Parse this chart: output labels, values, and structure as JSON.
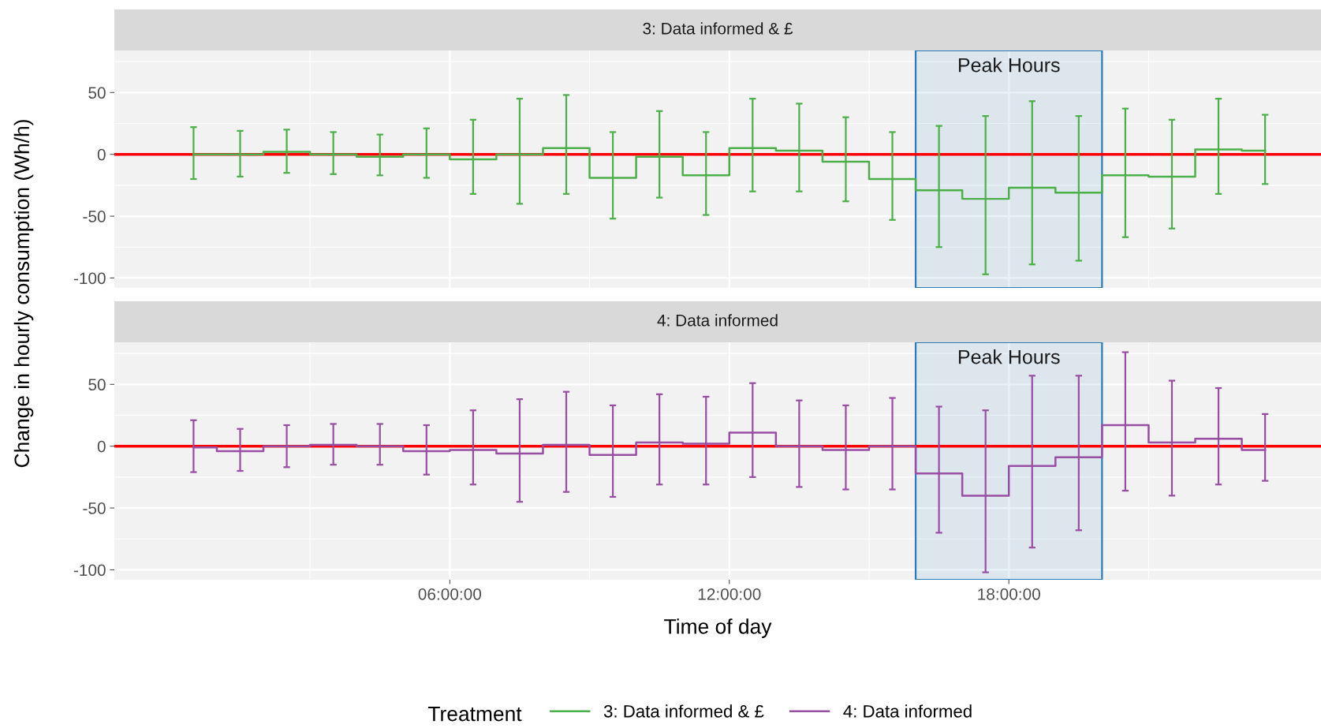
{
  "chart_data": [
    {
      "type": "step",
      "title": "3: Data informed & £",
      "ylabel": "Change in hourly consumption (Wh/h)",
      "legend_title": "Treatment",
      "legend": "bottom",
      "grid": true,
      "x": [
        0.5,
        1.5,
        2.5,
        3.5,
        4.5,
        5.5,
        6.5,
        7.5,
        8.5,
        9.5,
        10.5,
        11.5,
        12.5,
        13.5,
        14.5,
        15.5,
        16.5,
        17.5,
        18.5,
        19.5,
        20.5,
        21.5,
        22.5,
        23.5
      ],
      "series": [
        {
          "name": "3: Data informed & £",
          "color": "#4daf4a",
          "values": [
            0,
            0,
            2,
            0,
            -2,
            0,
            -4,
            0,
            5,
            -19,
            -2,
            -17,
            5,
            3,
            -6,
            -20,
            -29,
            -36,
            -27,
            -31,
            -17,
            -18,
            4,
            3
          ],
          "errors": [
            [
              -20,
              22
            ],
            [
              -18,
              19
            ],
            [
              -15,
              20
            ],
            [
              -16,
              18
            ],
            [
              -17,
              16
            ],
            [
              -19,
              21
            ],
            [
              -32,
              28
            ],
            [
              -40,
              45
            ],
            [
              -32,
              48
            ],
            [
              -52,
              18
            ],
            [
              -35,
              35
            ],
            [
              -49,
              18
            ],
            [
              -30,
              45
            ],
            [
              -30,
              41
            ],
            [
              -38,
              30
            ],
            [
              -53,
              18
            ],
            [
              -75,
              23
            ],
            [
              -97,
              31
            ],
            [
              -89,
              43
            ],
            [
              -86,
              31
            ],
            [
              -67,
              37
            ],
            [
              -60,
              28
            ],
            [
              -32,
              45
            ],
            [
              -24,
              32
            ]
          ]
        }
      ],
      "xlim": [
        -1.2,
        24.7
      ],
      "xticks": [
        6,
        12,
        18
      ],
      "ylim": [
        -108,
        84
      ],
      "yticks": [
        -100,
        -50,
        0,
        50
      ],
      "tick_labels": "y",
      "ref_lines": [
        {
          "axis": "y",
          "value": 0,
          "color": "#ff0000"
        }
      ],
      "bands": [
        {
          "axis": "x",
          "from": 16,
          "to": 20,
          "label": "Peak Hours",
          "color": "#2b7bba"
        }
      ]
    },
    {
      "type": "step",
      "title": "4: Data informed",
      "xlabel": "Time of day",
      "legend": "bottom",
      "grid": true,
      "x": [
        0.5,
        1.5,
        2.5,
        3.5,
        4.5,
        5.5,
        6.5,
        7.5,
        8.5,
        9.5,
        10.5,
        11.5,
        12.5,
        13.5,
        14.5,
        15.5,
        16.5,
        17.5,
        18.5,
        19.5,
        20.5,
        21.5,
        22.5,
        23.5
      ],
      "series": [
        {
          "name": "4: Data informed",
          "color": "#984ea3",
          "values": [
            -1,
            -4,
            0,
            1,
            0,
            -4,
            -3,
            -6,
            1,
            -7,
            3,
            2,
            11,
            0,
            -3,
            0,
            -22,
            -40,
            -16,
            -9,
            17,
            3,
            6,
            -3
          ],
          "errors": [
            [
              -21,
              21
            ],
            [
              -20,
              14
            ],
            [
              -17,
              17
            ],
            [
              -15,
              18
            ],
            [
              -15,
              18
            ],
            [
              -23,
              17
            ],
            [
              -31,
              29
            ],
            [
              -45,
              38
            ],
            [
              -37,
              44
            ],
            [
              -41,
              33
            ],
            [
              -31,
              42
            ],
            [
              -31,
              40
            ],
            [
              -25,
              51
            ],
            [
              -33,
              37
            ],
            [
              -35,
              33
            ],
            [
              -35,
              39
            ],
            [
              -70,
              32
            ],
            [
              -102,
              29
            ],
            [
              -82,
              57
            ],
            [
              -68,
              57
            ],
            [
              -36,
              76
            ],
            [
              -40,
              53
            ],
            [
              -31,
              47
            ],
            [
              -28,
              26
            ]
          ]
        }
      ],
      "xlim": [
        -1.2,
        24.7
      ],
      "xticks": [
        {
          "value": 6,
          "label": "06:00:00"
        },
        {
          "value": 12,
          "label": "12:00:00"
        },
        {
          "value": 18,
          "label": "18:00:00"
        }
      ],
      "ylim": [
        -108,
        84
      ],
      "yticks": [
        -100,
        -50,
        0,
        50
      ],
      "ref_lines": [
        {
          "axis": "y",
          "value": 0,
          "color": "#ff0000"
        }
      ],
      "bands": [
        {
          "axis": "x",
          "from": 16,
          "to": 20,
          "label": "Peak Hours",
          "color": "#2b7bba"
        }
      ]
    }
  ]
}
